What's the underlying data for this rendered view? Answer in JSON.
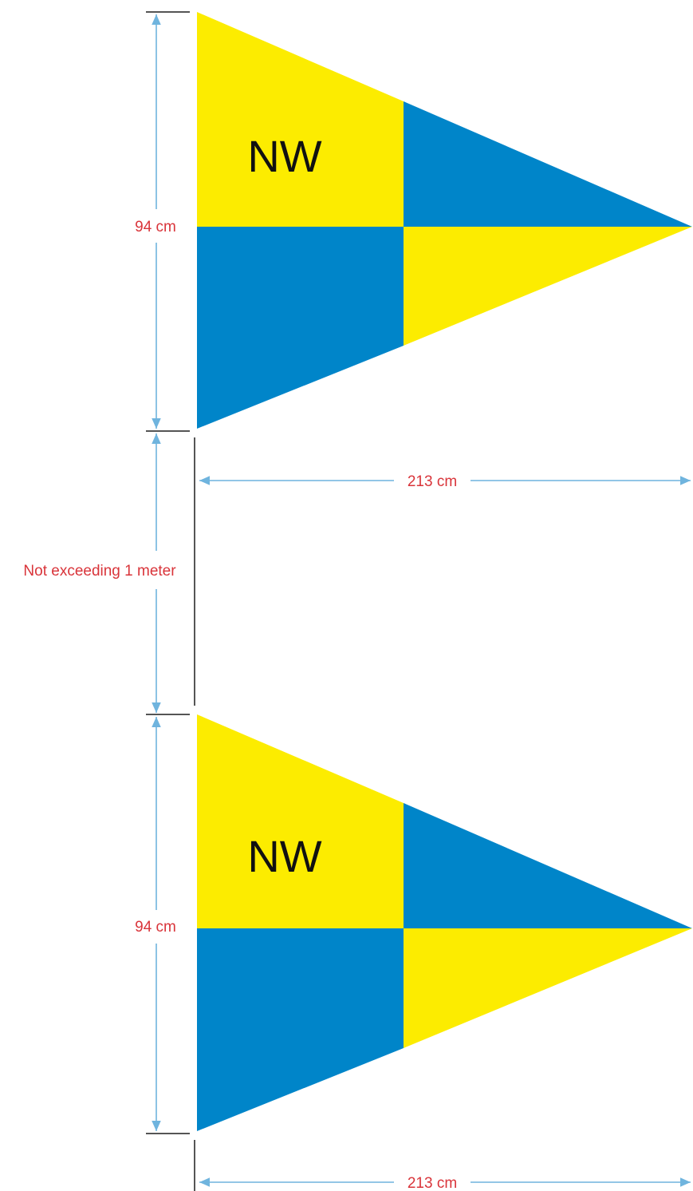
{
  "colors": {
    "yellow": "#fcec00",
    "blue": "#0085c9",
    "dimension_line": "#6fb4de",
    "label": "#d9343a",
    "tick": "#555555"
  },
  "flags": [
    {
      "letters": "NW",
      "height_label": "94 cm",
      "width_label": "213 cm"
    },
    {
      "letters": "NW",
      "height_label": "94 cm",
      "width_label": "213 cm"
    }
  ],
  "spacing_label": "Not exceeding 1 meter"
}
